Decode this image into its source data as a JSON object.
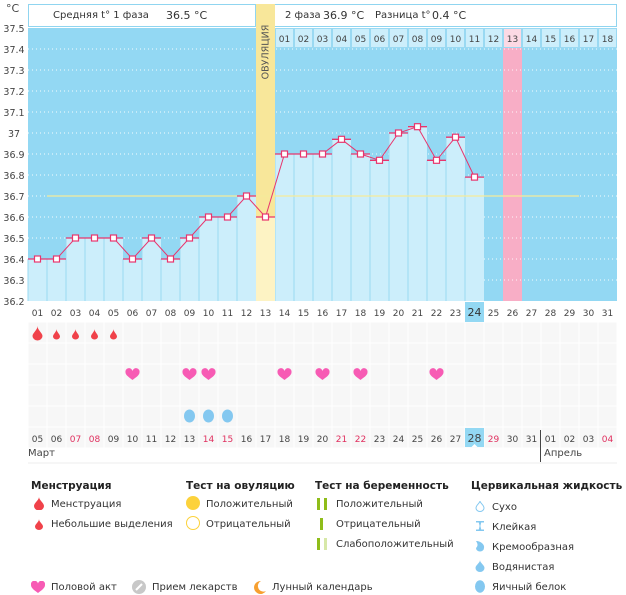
{
  "header": {
    "unit_label": "°C",
    "phase1_label": "Средняя t° 1 фаза",
    "phase1_value": "36.5 °C",
    "phase2_label": "2 фаза",
    "phase2_value": "36.9 °C",
    "diff_label": "Разница t°",
    "diff_value": "0.4 °C",
    "ovulation_label": "ОВУЛЯЦИЯ"
  },
  "colors": {
    "plot_bg": "#93d8f3",
    "bar_fill": "#cceefb",
    "line": "#e8356d",
    "coverline": "#f5ea9a",
    "ovulation": "#f8e79a",
    "menstruation": "#f0424a",
    "heart": "#f75bb4",
    "egg_white": "#84c8f0",
    "expected_period": "#f8aec6",
    "today": "#93d8f3",
    "weekend_date": "#e0305f"
  },
  "chart_data": {
    "type": "line",
    "title": "Базальная температура",
    "ylabel": "°C",
    "ylim": [
      36.2,
      37.5
    ],
    "yticks": [
      "37.5",
      "37.4",
      "37.3",
      "37.2",
      "37.1",
      "37",
      "36.9",
      "36.8",
      "36.7",
      "36.6",
      "36.5",
      "36.4",
      "36.3",
      "36.2"
    ],
    "grid": true,
    "cycle_days": [
      "01",
      "02",
      "03",
      "04",
      "05",
      "06",
      "07",
      "08",
      "09",
      "10",
      "11",
      "12",
      "13",
      "14",
      "15",
      "16",
      "17",
      "18",
      "19",
      "20",
      "21",
      "22",
      "23",
      "24",
      "25",
      "26",
      "27",
      "28",
      "29",
      "30",
      "31"
    ],
    "series": [
      {
        "name": "Температура",
        "values": [
          36.4,
          36.4,
          36.5,
          36.5,
          36.5,
          36.4,
          36.5,
          36.4,
          36.5,
          36.6,
          36.6,
          36.7,
          36.6,
          36.9,
          36.9,
          36.9,
          36.97,
          36.9,
          36.87,
          37.0,
          37.03,
          36.87,
          36.98,
          36.79
        ]
      }
    ],
    "coverline": 36.7,
    "coverline_range_days": [
      2,
      30
    ],
    "ovulation_day": 13,
    "current_cycle_day": 24,
    "expected_period_day": 26,
    "phase2_days": [
      "01",
      "02",
      "03",
      "04",
      "05",
      "06",
      "07",
      "08",
      "09",
      "10",
      "11",
      "12",
      "13",
      "14",
      "15",
      "16",
      "17",
      "18"
    ],
    "phase2_highlight_day": "13",
    "calendar_dates": [
      "05",
      "06",
      "07",
      "08",
      "09",
      "10",
      "11",
      "12",
      "13",
      "14",
      "15",
      "16",
      "17",
      "18",
      "19",
      "20",
      "21",
      "22",
      "23",
      "24",
      "25",
      "26",
      "27",
      "28",
      "29",
      "30",
      "31",
      "01",
      "02",
      "03",
      "04"
    ],
    "weekend_dates_idx": [
      2,
      3,
      9,
      10,
      16,
      17,
      24,
      30
    ],
    "today_date_idx": 23,
    "months": [
      {
        "label": "Март",
        "start_idx": 0
      },
      {
        "label": "Апрель",
        "start_idx": 27
      }
    ],
    "menstruation": {
      "heavy": [
        1
      ],
      "light": [
        2,
        3,
        4,
        5
      ]
    },
    "intercourse_days": [
      6,
      9,
      10,
      14,
      16,
      18,
      22
    ],
    "egg_white_days": [
      9,
      10,
      11
    ]
  },
  "legend": {
    "menstruation": {
      "title": "Менструация",
      "items": [
        "Менструация",
        "Небольшие выделения"
      ]
    },
    "ovulation_test": {
      "title": "Тест на овуляцию",
      "items": [
        "Положительный",
        "Отрицательный"
      ]
    },
    "pregnancy_test": {
      "title": "Тест на беременность",
      "items": [
        "Положительный",
        "Отрицательный",
        "Слабоположительный"
      ]
    },
    "cervical_fluid": {
      "title": "Цервикальная жидкость",
      "items": [
        "Сухо",
        "Клейкая",
        "Кремообразная",
        "Водянистая",
        "Яичный белок"
      ]
    },
    "bottom": [
      "Половой акт",
      "Прием лекарств",
      "Лунный календарь"
    ]
  }
}
